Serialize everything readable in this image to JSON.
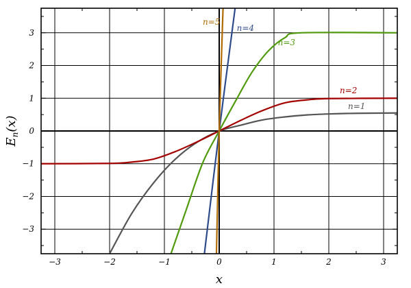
{
  "chart_data": {
    "type": "line",
    "xlabel": "x",
    "ylabel": "E_n(x)",
    "ylabel_main": "E",
    "ylabel_sub": "n",
    "ylabel_arg": "(x)",
    "xlim": [
      -3.25,
      3.25
    ],
    "ylim": [
      -3.75,
      3.75
    ],
    "xticks": [
      -3,
      -2,
      -1,
      0,
      1,
      2,
      3
    ],
    "yticks": [
      -3,
      -2,
      -1,
      0,
      1,
      2,
      3
    ],
    "grid": true,
    "series": [
      {
        "name": "n=1",
        "color": "#555555",
        "points": [
          [
            -2.0,
            -3.75
          ],
          [
            -1.6,
            -2.53
          ],
          [
            -1.2,
            -1.59
          ],
          [
            -0.8,
            -0.86
          ],
          [
            -0.4,
            -0.34
          ],
          [
            0,
            0
          ],
          [
            0.4,
            0.18
          ],
          [
            0.8,
            0.34
          ],
          [
            1.2,
            0.43
          ],
          [
            1.6,
            0.49
          ],
          [
            2.0,
            0.52
          ],
          [
            2.5,
            0.54
          ],
          [
            3.25,
            0.55
          ]
        ],
        "label": "n=1",
        "label_x": 2.35,
        "label_y": 0.67
      },
      {
        "name": "n=2",
        "color": "#a50000",
        "points": [
          [
            -3.25,
            -1.0
          ],
          [
            -2.0,
            -0.99
          ],
          [
            -1.6,
            -0.95
          ],
          [
            -1.2,
            -0.86
          ],
          [
            -0.8,
            -0.63
          ],
          [
            -0.4,
            -0.33
          ],
          [
            0,
            0
          ],
          [
            0.4,
            0.33
          ],
          [
            0.8,
            0.63
          ],
          [
            1.2,
            0.86
          ],
          [
            1.6,
            0.95
          ],
          [
            2.0,
            0.99
          ],
          [
            3.25,
            1.0
          ]
        ],
        "label": "n=2",
        "label_x": 2.2,
        "label_y": 1.15
      },
      {
        "name": "n=3",
        "color": "#4f9a0b",
        "points": [
          [
            -0.88,
            -3.75
          ],
          [
            -0.6,
            -2.4
          ],
          [
            -0.3,
            -0.97
          ],
          [
            0,
            0
          ],
          [
            0.3,
            0.92
          ],
          [
            0.6,
            1.8
          ],
          [
            0.9,
            2.45
          ],
          [
            1.2,
            2.85
          ],
          [
            1.5,
            3.0
          ],
          [
            3.25,
            3.0
          ]
        ],
        "label": "n=3",
        "label_x": 1.07,
        "label_y": 2.62
      },
      {
        "name": "n=4",
        "color": "#2d4b8b",
        "points": [
          [
            -0.27,
            -3.75
          ],
          [
            0,
            0
          ],
          [
            0.29,
            3.75
          ]
        ],
        "label": "n=4",
        "label_x": 0.32,
        "label_y": 3.06
      },
      {
        "name": "n=5",
        "color": "#b06b00",
        "points": [
          [
            -0.05,
            -3.75
          ],
          [
            0,
            0
          ],
          [
            0.07,
            3.75
          ]
        ],
        "label": "n=5",
        "label_x": -0.3,
        "label_y": 3.25
      }
    ]
  }
}
